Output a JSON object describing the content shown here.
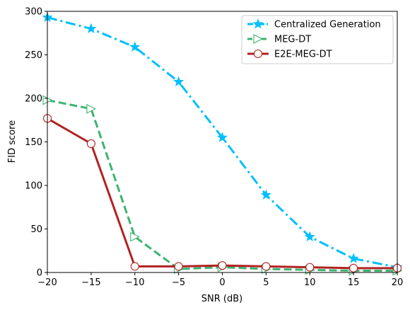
{
  "chart_data": {
    "type": "line",
    "title": "",
    "xlabel": "SNR (dB)",
    "ylabel": "FID score",
    "x": [
      -20,
      -15,
      -10,
      -5,
      0,
      5,
      10,
      15,
      20
    ],
    "xlim": [
      -20,
      20
    ],
    "ylim": [
      0,
      300
    ],
    "xticks": [
      "−20",
      "−15",
      "−10",
      "−5",
      "0",
      "5",
      "10",
      "15",
      "20"
    ],
    "yticks": [
      "0",
      "50",
      "100",
      "150",
      "200",
      "250",
      "300"
    ],
    "grid": false,
    "legend_position": "top-right",
    "series": [
      {
        "name": "Centralized Generation",
        "values": [
          293,
          280,
          259,
          219,
          155,
          89,
          41,
          16,
          6
        ],
        "color": "#00bfff",
        "line_style": "dashdot",
        "marker": "star"
      },
      {
        "name": "MEG-DT",
        "values": [
          198,
          188,
          41,
          4,
          6,
          4,
          3,
          2,
          2
        ],
        "color": "#3cb371",
        "line_style": "dashed",
        "marker": "triangle-right"
      },
      {
        "name": "E2E-MEG-DT",
        "values": [
          177,
          148,
          7,
          7,
          8,
          7,
          6,
          5,
          5
        ],
        "color": "#b22222",
        "line_style": "solid",
        "marker": "circle"
      }
    ]
  }
}
